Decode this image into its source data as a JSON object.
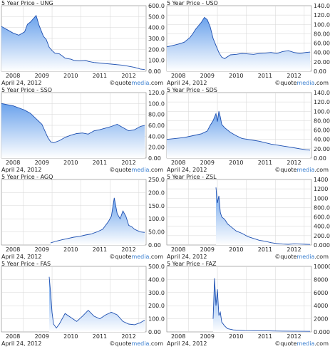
{
  "credit": {
    "copyright": "©",
    "brand_a": "quote",
    "brand_b": "media",
    "suffix": ".com"
  },
  "colors": {
    "fill_top": "#6aa2ec",
    "fill_bottom": "#ffffff",
    "line": "#1d4fb0",
    "grid": "#d5d5d5",
    "frame": "#808080"
  },
  "chart_data": [
    {
      "type": "area",
      "title": "5 Year Price - UNG",
      "date": "April 24, 2012",
      "x_ticks": [
        "2008",
        "2009",
        "2010",
        "2011",
        "2012"
      ],
      "y_ticks": [
        "0.00",
        "100.0",
        "200.0",
        "300.0",
        "400.0",
        "500.0",
        "600.0"
      ],
      "ylim": [
        0,
        600
      ],
      "xlim": [
        0,
        5
      ],
      "x": [
        0,
        0.2,
        0.4,
        0.6,
        0.7,
        0.8,
        0.9,
        1.0,
        1.2,
        1.3,
        1.45,
        1.55,
        1.65,
        1.75,
        1.85,
        2.0,
        2.1,
        2.2,
        2.3,
        2.4,
        2.5,
        2.7,
        2.9,
        3.0,
        3.2,
        3.4,
        3.6,
        3.8,
        4.0,
        4.2,
        4.4,
        4.6,
        4.8,
        4.95
      ],
      "y": [
        410,
        380,
        350,
        330,
        345,
        360,
        430,
        450,
        510,
        420,
        320,
        290,
        220,
        190,
        165,
        160,
        140,
        120,
        115,
        110,
        100,
        95,
        100,
        90,
        80,
        75,
        70,
        65,
        60,
        55,
        45,
        35,
        20,
        15
      ]
    },
    {
      "type": "area",
      "title": "5 Year Price - USO",
      "date": "April 24, 2012",
      "x_ticks": [
        "2008",
        "2009",
        "2010",
        "2011",
        "2012"
      ],
      "y_ticks": [
        "0.00",
        "20.00",
        "40.00",
        "60.00",
        "80.00",
        "100.0",
        "120.0",
        "140.0"
      ],
      "ylim": [
        0,
        140
      ],
      "xlim": [
        0,
        5
      ],
      "x": [
        0,
        0.2,
        0.4,
        0.6,
        0.8,
        0.9,
        1.0,
        1.2,
        1.3,
        1.4,
        1.5,
        1.6,
        1.7,
        1.8,
        1.9,
        2.0,
        2.2,
        2.4,
        2.6,
        2.8,
        3.0,
        3.2,
        3.4,
        3.6,
        3.8,
        4.0,
        4.2,
        4.4,
        4.6,
        4.8,
        4.95
      ],
      "y": [
        52,
        55,
        58,
        62,
        72,
        80,
        90,
        105,
        115,
        110,
        95,
        70,
        55,
        40,
        30,
        27,
        35,
        36,
        38,
        37,
        36,
        38,
        39,
        40,
        38,
        42,
        44,
        40,
        38,
        40,
        41
      ]
    },
    {
      "type": "area",
      "title": "5 Year Price - SSO",
      "date": "April 24, 2012",
      "x_ticks": [
        "2008",
        "2009",
        "2010",
        "2011",
        "2012"
      ],
      "y_ticks": [
        "0.00",
        "20.00",
        "40.00",
        "60.00",
        "80.00",
        "100.0",
        "120.0"
      ],
      "ylim": [
        0,
        120
      ],
      "xlim": [
        0,
        5
      ],
      "x": [
        0,
        0.2,
        0.4,
        0.6,
        0.8,
        1.0,
        1.2,
        1.4,
        1.5,
        1.6,
        1.7,
        1.8,
        2.0,
        2.2,
        2.4,
        2.6,
        2.8,
        3.0,
        3.2,
        3.4,
        3.6,
        3.8,
        4.0,
        4.2,
        4.4,
        4.6,
        4.8,
        4.95
      ],
      "y": [
        100,
        98,
        96,
        92,
        88,
        82,
        72,
        62,
        50,
        38,
        30,
        28,
        32,
        38,
        42,
        45,
        46,
        44,
        50,
        52,
        55,
        58,
        62,
        56,
        50,
        52,
        58,
        60
      ]
    },
    {
      "type": "area",
      "title": "5 Year Price - SDS",
      "date": "April 24, 2012",
      "x_ticks": [
        "2008",
        "2009",
        "2010",
        "2011",
        "2012"
      ],
      "y_ticks": [
        "0.00",
        "20.00",
        "40.00",
        "60.00",
        "80.00",
        "100.0",
        "120.0",
        "140.0"
      ],
      "ylim": [
        0,
        140
      ],
      "xlim": [
        0,
        5
      ],
      "x": [
        0,
        0.3,
        0.6,
        0.9,
        1.2,
        1.4,
        1.5,
        1.6,
        1.7,
        1.75,
        1.8,
        1.85,
        1.9,
        2.0,
        2.2,
        2.4,
        2.6,
        2.8,
        3.0,
        3.2,
        3.4,
        3.6,
        3.8,
        4.0,
        4.2,
        4.4,
        4.6,
        4.8,
        4.95
      ],
      "y": [
        40,
        42,
        44,
        48,
        52,
        58,
        70,
        80,
        95,
        78,
        100,
        88,
        72,
        65,
        55,
        48,
        42,
        40,
        38,
        36,
        33,
        30,
        28,
        26,
        24,
        22,
        20,
        18,
        17
      ]
    },
    {
      "type": "area",
      "title": "5 Year Price - AGQ",
      "date": "April 24, 2012",
      "x_ticks": [
        "2008",
        "2009",
        "2010",
        "2011",
        "2012"
      ],
      "y_ticks": [
        "0.00",
        "50.00",
        "100.0",
        "150.0",
        "200.0",
        "250.0"
      ],
      "ylim": [
        0,
        250
      ],
      "xlim": [
        0,
        5
      ],
      "x": [
        1.7,
        1.9,
        2.1,
        2.3,
        2.5,
        2.7,
        2.9,
        3.1,
        3.3,
        3.5,
        3.7,
        3.8,
        3.9,
        4.0,
        4.1,
        4.2,
        4.3,
        4.4,
        4.5,
        4.6,
        4.7,
        4.8,
        4.95
      ],
      "y": [
        8,
        15,
        20,
        25,
        30,
        33,
        38,
        42,
        50,
        60,
        90,
        110,
        180,
        120,
        100,
        130,
        110,
        75,
        70,
        60,
        55,
        50,
        48
      ]
    },
    {
      "type": "area",
      "title": "5 Year Price - ZSL",
      "date": "April 24, 2012",
      "x_ticks": [
        "2008",
        "2009",
        "2010",
        "2011",
        "2012"
      ],
      "y_ticks": [
        "0.000",
        "200.0",
        "400.0",
        "600.0",
        "800.0",
        "1000",
        "1200",
        "1400"
      ],
      "ylim": [
        0,
        1400
      ],
      "xlim": [
        0,
        5
      ],
      "x": [
        1.7,
        1.75,
        1.8,
        1.85,
        1.9,
        2.0,
        2.1,
        2.2,
        2.4,
        2.6,
        2.8,
        3.0,
        3.2,
        3.4,
        3.6,
        3.8,
        4.0,
        4.2,
        4.4,
        4.6,
        4.8,
        4.95
      ],
      "y": [
        1230,
        900,
        1050,
        700,
        600,
        550,
        450,
        400,
        300,
        250,
        180,
        140,
        100,
        80,
        50,
        30,
        20,
        15,
        25,
        20,
        15,
        12
      ]
    },
    {
      "type": "area",
      "title": "5 Year Price - FAS",
      "date": "April 24, 2012",
      "x_ticks": [
        "2008",
        "2009",
        "2010",
        "2011",
        "2012"
      ],
      "y_ticks": [
        "0.00",
        "100.0",
        "200.0",
        "300.0",
        "400.0",
        "500.0"
      ],
      "ylim": [
        0,
        500
      ],
      "xlim": [
        0,
        5
      ],
      "x": [
        1.65,
        1.7,
        1.75,
        1.8,
        1.9,
        2.0,
        2.2,
        2.4,
        2.6,
        2.8,
        3.0,
        3.2,
        3.4,
        3.6,
        3.8,
        4.0,
        4.2,
        4.4,
        4.6,
        4.8,
        4.95
      ],
      "y": [
        420,
        300,
        150,
        60,
        30,
        60,
        140,
        110,
        80,
        120,
        165,
        120,
        100,
        130,
        150,
        130,
        80,
        60,
        55,
        70,
        90
      ]
    },
    {
      "type": "area",
      "title": "5 Year Price - FAZ",
      "date": "April 24, 2012",
      "x_ticks": [
        "2008",
        "2009",
        "2010",
        "2011",
        "2012"
      ],
      "y_ticks": [
        "0.000",
        "2000",
        "4000",
        "6000",
        "8000",
        "10000"
      ],
      "ylim": [
        0,
        10000
      ],
      "xlim": [
        0,
        5
      ],
      "x": [
        1.6,
        1.65,
        1.7,
        1.75,
        1.8,
        1.85,
        1.9,
        2.0,
        2.1,
        2.3,
        2.5,
        2.7,
        3.0,
        3.5,
        4.0,
        4.5,
        4.95
      ],
      "y": [
        2000,
        8200,
        4000,
        6500,
        2500,
        3000,
        1500,
        900,
        500,
        300,
        250,
        200,
        180,
        150,
        120,
        100,
        90
      ]
    }
  ]
}
